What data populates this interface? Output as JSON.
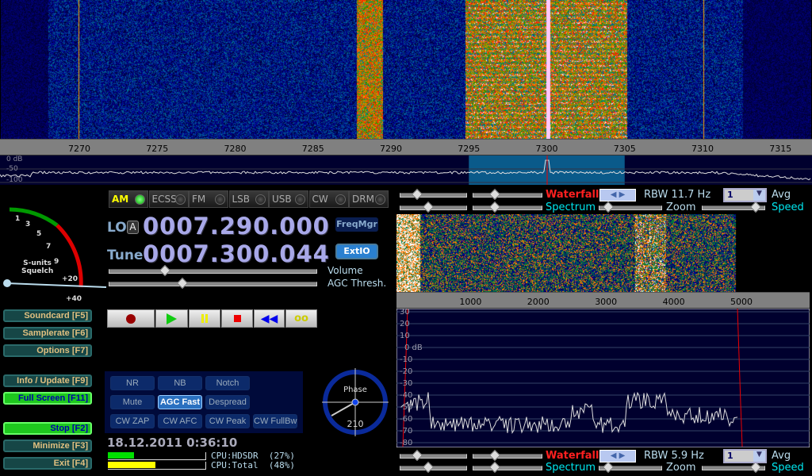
{
  "rf": {
    "freq_ticks_khz": [
      7270,
      7275,
      7280,
      7285,
      7290,
      7295,
      7300,
      7305,
      7310,
      7315
    ],
    "db_labels": [
      "0 dB",
      "-50",
      "-100"
    ],
    "filter_khz": [
      7295,
      7305
    ],
    "tuned_khz": 7300.044
  },
  "modes": [
    {
      "label": "AM",
      "active": true
    },
    {
      "label": "ECSS"
    },
    {
      "label": "FM"
    },
    {
      "label": "LSB"
    },
    {
      "label": "USB"
    },
    {
      "label": "CW"
    },
    {
      "label": "DRM"
    }
  ],
  "smeter": {
    "scale": [
      "1",
      "3",
      "5",
      "7",
      "9",
      "+20",
      "+40"
    ],
    "title": "S-units",
    "subtitle": "Squelch"
  },
  "lo": {
    "label": "LO",
    "badge": "A",
    "value": "0007.290.000"
  },
  "tune": {
    "label": "Tune",
    "value": "0007.300.044"
  },
  "sliders": {
    "volume": "Volume",
    "agc": "AGC Thresh.",
    "volume_level": 0.27,
    "agc_level": 0.35
  },
  "buttons": {
    "freqmgr": "FreqMgr",
    "extio": "ExtIO"
  },
  "left_buttons": [
    {
      "label": "Soundcard  [F5]"
    },
    {
      "label": "Samplerate [F6]"
    },
    {
      "label": "Options    [F7]"
    },
    {
      "label": "Info / Update  [F9]"
    },
    {
      "label": "Full Screen  [F11]",
      "green": true
    },
    {
      "label": "Stop        [F2]",
      "green": true
    },
    {
      "label": "Minimize  [F3]"
    },
    {
      "label": "Exit        [F4]"
    }
  ],
  "transport": [
    "record",
    "play",
    "pause",
    "stop",
    "rewind",
    "loop"
  ],
  "dsp": [
    {
      "label": "NR"
    },
    {
      "label": "NB"
    },
    {
      "label": "Notch"
    },
    {
      "label": "Mute"
    },
    {
      "label": "AGC Fast",
      "active": true
    },
    {
      "label": "Despread"
    },
    {
      "label": "CW ZAP"
    },
    {
      "label": "CW AFC"
    },
    {
      "label": "CW Peak"
    },
    {
      "label": "CW FullBw"
    }
  ],
  "phase": {
    "label": "Phase",
    "value": "210"
  },
  "datetime": "18.12.2011 0:36:10",
  "cpu": [
    {
      "label": "CPU:HDSDR  (27%)",
      "percent": 27,
      "color": "#00e000"
    },
    {
      "label": "CPU:Total  (48%)",
      "percent": 48,
      "color": "#ffff00"
    }
  ],
  "rf_controls": {
    "waterfall": "Waterfall",
    "spectrum": "Spectrum",
    "rbw": "RBW 11.7 Hz",
    "avg_value": "1",
    "avg": "Avg",
    "zoom": "Zoom",
    "speed": "Speed"
  },
  "af": {
    "freq_ticks_hz": [
      1000,
      2000,
      3000,
      4000,
      5000
    ],
    "db_labels": [
      "30",
      "20",
      "10",
      "0 dB",
      "-10",
      "-20",
      "-30",
      "-40",
      "-50",
      "-60",
      "-70",
      "-80"
    ]
  },
  "af_controls": {
    "waterfall": "Waterfall",
    "spectrum": "Spectrum",
    "rbw": "RBW  5.9 Hz",
    "avg_value": "1",
    "avg": "Avg",
    "zoom": "Zoom",
    "speed": "Speed"
  },
  "colors": {
    "waterfall_label": "#ff2020",
    "spectrum_label": "#00e8f0",
    "filter": "#0a5a8a",
    "plot_bg": "#00002e"
  }
}
